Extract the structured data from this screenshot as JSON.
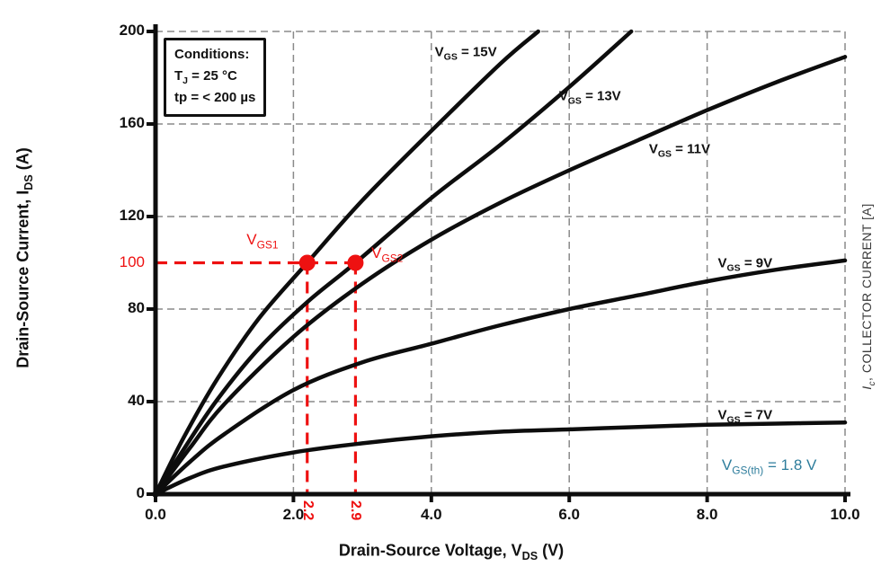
{
  "conditions_box": {
    "lines": [
      [
        {
          "t": "Conditions:"
        }
      ],
      [
        {
          "t": "T"
        },
        {
          "t": "J",
          "sub": true
        },
        {
          "t": " = 25 °C"
        }
      ],
      [
        {
          "t": "tp = < 200 µs"
        }
      ]
    ]
  },
  "chart_data": {
    "type": "line",
    "title": "",
    "xlabel": "Drain-Source Voltage, VDS (V)",
    "ylabel": "Drain-Source Current, IDS (A)",
    "right_ylabel": "Ic, COLLECTOR CURRENT [A]",
    "xlabel_segments": [
      {
        "t": "Drain-Source Voltage, V"
      },
      {
        "t": "DS",
        "sub": true
      },
      {
        "t": " (V)"
      }
    ],
    "ylabel_segments": [
      {
        "t": "Drain-Source Current, I"
      },
      {
        "t": "DS",
        "sub": true
      },
      {
        "t": " (A)"
      }
    ],
    "right_ylabel_segments": [
      {
        "t": "I",
        "i": true
      },
      {
        "t": "c",
        "sub": true,
        "i": true
      },
      {
        "t": ", COLLECTOR CURRENT [A]"
      }
    ],
    "xlim": [
      0,
      10
    ],
    "ylim": [
      0,
      200
    ],
    "grid": true,
    "x_gridlines": [
      2,
      4,
      6,
      8,
      10
    ],
    "y_gridlines": [
      40,
      80,
      120,
      160,
      200
    ],
    "x_ticks": [
      {
        "v": 0,
        "label": "0.0"
      },
      {
        "v": 2,
        "label": "2.0"
      },
      {
        "v": 4,
        "label": "4.0"
      },
      {
        "v": 6,
        "label": "6.0"
      },
      {
        "v": 8,
        "label": "8.0"
      },
      {
        "v": 10,
        "label": "10.0"
      }
    ],
    "y_ticks": [
      {
        "v": 0,
        "label": "0"
      },
      {
        "v": 40,
        "label": "40"
      },
      {
        "v": 80,
        "label": "80"
      },
      {
        "v": 100,
        "label": "100",
        "highlight": true
      },
      {
        "v": 120,
        "label": "120"
      },
      {
        "v": 160,
        "label": "160"
      },
      {
        "v": 200,
        "label": "200"
      }
    ],
    "series": [
      {
        "name": "VGS = 15V",
        "vgs_volts": 15,
        "label_segments": [
          {
            "t": "V"
          },
          {
            "t": "GS",
            "sub": true
          },
          {
            "t": " = 15V"
          }
        ],
        "label_at": {
          "x": 4.5,
          "y": 191
        },
        "points": [
          [
            0,
            0
          ],
          [
            0.4,
            24
          ],
          [
            0.9,
            50
          ],
          [
            1.5,
            76
          ],
          [
            2.2,
            100
          ],
          [
            3,
            127
          ],
          [
            4,
            157
          ],
          [
            5,
            186
          ],
          [
            5.55,
            200
          ]
        ]
      },
      {
        "name": "VGS = 13V",
        "vgs_volts": 13,
        "label_segments": [
          {
            "t": "V"
          },
          {
            "t": "GS",
            "sub": true
          },
          {
            "t": " = 13V"
          }
        ],
        "label_at": {
          "x": 6.3,
          "y": 172
        },
        "points": [
          [
            0,
            0
          ],
          [
            0.4,
            19
          ],
          [
            0.9,
            41
          ],
          [
            1.5,
            63
          ],
          [
            2.2,
            83
          ],
          [
            2.9,
            100
          ],
          [
            4,
            128
          ],
          [
            5,
            151
          ],
          [
            6,
            176
          ],
          [
            6.9,
            200
          ]
        ]
      },
      {
        "name": "VGS = 11V",
        "vgs_volts": 11,
        "label_segments": [
          {
            "t": "V"
          },
          {
            "t": "GS",
            "sub": true
          },
          {
            "t": " = 11V"
          }
        ],
        "label_at": {
          "x": 7.6,
          "y": 149
        },
        "points": [
          [
            0,
            0
          ],
          [
            0.5,
            20
          ],
          [
            1,
            39
          ],
          [
            2,
            68
          ],
          [
            3,
            91
          ],
          [
            4,
            110
          ],
          [
            5,
            126
          ],
          [
            6,
            140
          ],
          [
            7,
            153
          ],
          [
            8,
            166
          ],
          [
            9,
            178
          ],
          [
            10,
            189
          ]
        ]
      },
      {
        "name": "VGS = 9V",
        "vgs_volts": 9,
        "label_segments": [
          {
            "t": "V"
          },
          {
            "t": "GS",
            "sub": true
          },
          {
            "t": " = 9V"
          }
        ],
        "label_at": {
          "x": 8.55,
          "y": 100
        },
        "points": [
          [
            0,
            0
          ],
          [
            0.5,
            14
          ],
          [
            1,
            26
          ],
          [
            2,
            45
          ],
          [
            3,
            57
          ],
          [
            4,
            65
          ],
          [
            5,
            73
          ],
          [
            6,
            80
          ],
          [
            7,
            86
          ],
          [
            8,
            92
          ],
          [
            9,
            97
          ],
          [
            10,
            101
          ]
        ]
      },
      {
        "name": "VGS = 7V",
        "vgs_volts": 7,
        "label_segments": [
          {
            "t": "V"
          },
          {
            "t": "GS",
            "sub": true
          },
          {
            "t": " = 7V"
          }
        ],
        "label_at": {
          "x": 8.55,
          "y": 34
        },
        "points": [
          [
            0,
            0
          ],
          [
            0.5,
            7
          ],
          [
            1,
            12
          ],
          [
            2,
            18
          ],
          [
            3,
            22
          ],
          [
            4,
            25
          ],
          [
            5,
            27
          ],
          [
            6,
            28
          ],
          [
            7,
            29
          ],
          [
            8,
            30
          ],
          [
            9,
            30.5
          ],
          [
            10,
            31
          ]
        ]
      }
    ],
    "annotations": {
      "hline": {
        "y": 100,
        "from_x": 0,
        "to_x": 2.9
      },
      "operating_points": [
        {
          "x": 2.2,
          "y": 100,
          "value_label": "2.2"
        },
        {
          "x": 2.9,
          "y": 100,
          "value_label": "2.9"
        }
      ],
      "point_labels": [
        {
          "segments": [
            {
              "t": "V"
            },
            {
              "t": "GS1",
              "sub": true
            }
          ],
          "at": {
            "x": 1.55,
            "y": 110
          }
        },
        {
          "segments": [
            {
              "t": "V"
            },
            {
              "t": "GS2",
              "sub": true
            }
          ],
          "at": {
            "x": 3.36,
            "y": 104
          }
        }
      ],
      "threshold_label": {
        "segments": [
          {
            "t": "V"
          },
          {
            "t": "GS(th)",
            "sub": true
          },
          {
            "t": " = 1.8 V"
          }
        ],
        "at": {
          "x": 8.9,
          "y": 12.5
        }
      }
    },
    "colors": {
      "curve": "#0d0d0d",
      "axis": "#0d0d0d",
      "grid": "#8a8a8a",
      "annotation": "#ee1111",
      "threshold": "#2e7d9c",
      "text": "#111111"
    }
  }
}
